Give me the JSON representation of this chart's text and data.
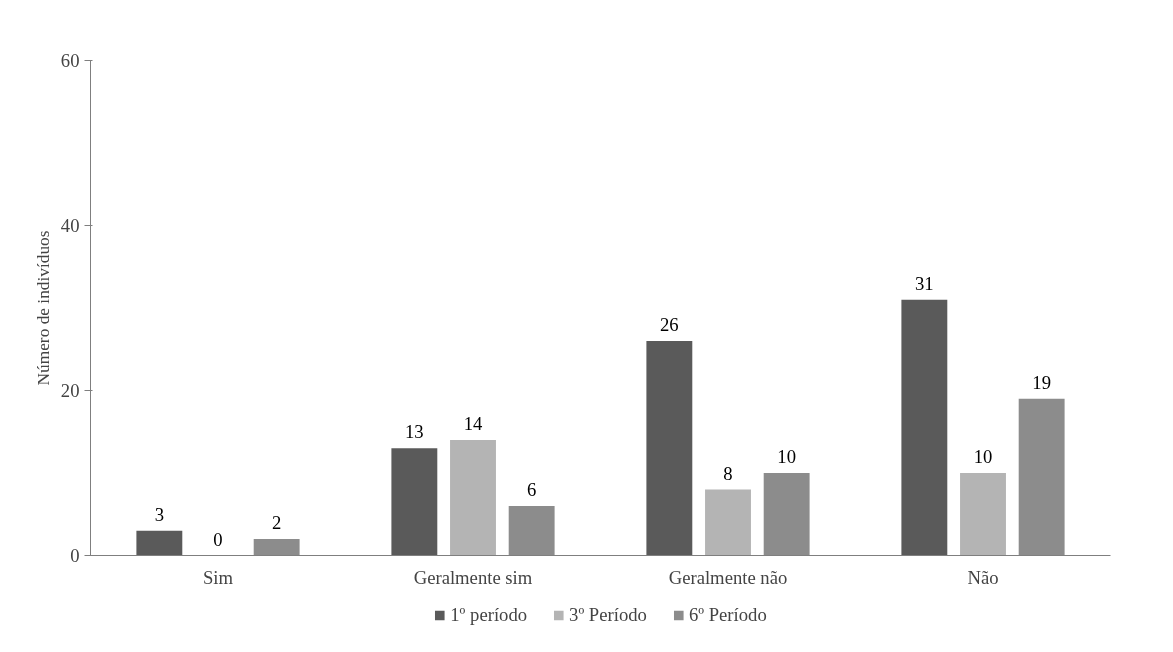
{
  "chart_data": {
    "type": "bar",
    "ylabel": "Número de indivíduos",
    "categories": [
      "Sim",
      "Geralmente sim",
      "Geralmente não",
      "Não"
    ],
    "series": [
      {
        "name": "1º período",
        "color": "#5a5a5a",
        "values": [
          3,
          13,
          26,
          31
        ]
      },
      {
        "name": "3º Período",
        "color": "#b4b4b4",
        "values": [
          0,
          14,
          8,
          10
        ]
      },
      {
        "name": "6º Período",
        "color": "#8c8c8c",
        "values": [
          2,
          6,
          10,
          19
        ]
      }
    ],
    "ylim": [
      0,
      60
    ],
    "yticks": [
      0,
      20,
      40,
      60
    ],
    "grid": false,
    "legend": "bottom",
    "data_labels": true
  }
}
